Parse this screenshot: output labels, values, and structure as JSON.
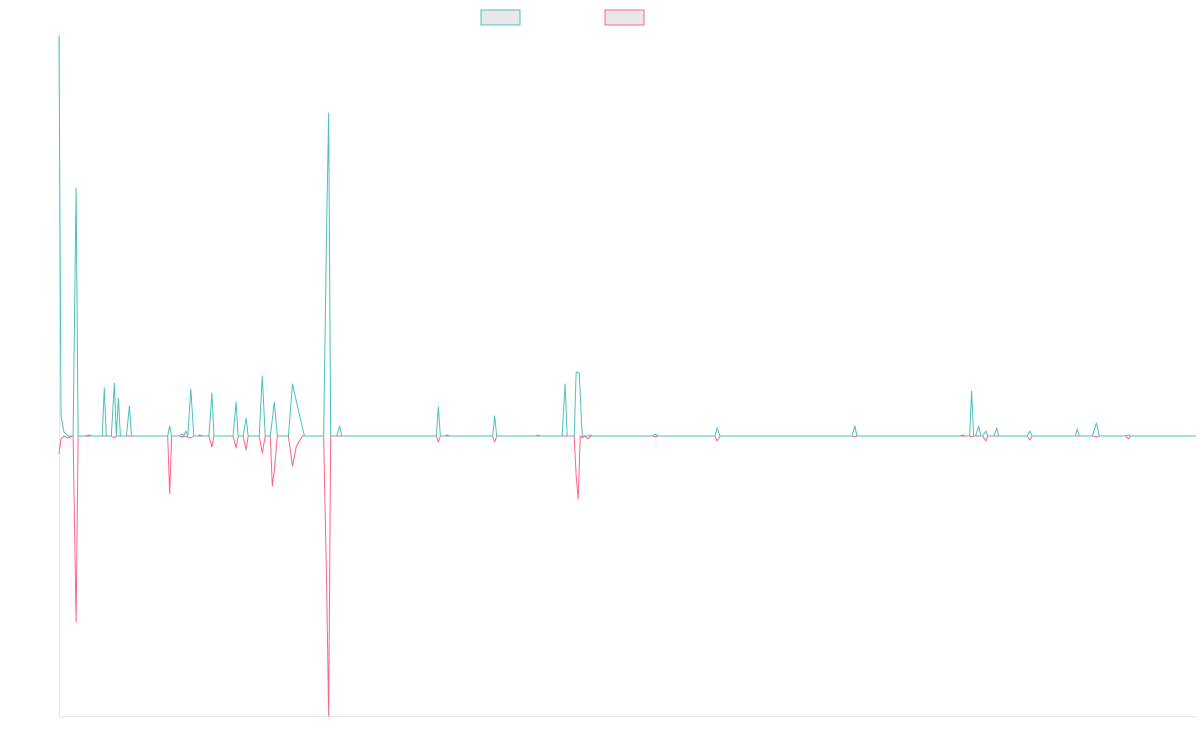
{
  "colors": {
    "series_a": "#4bc0c0",
    "series_b": "#ff6384",
    "axis": "#e6e6e6",
    "legend_fill": "#e8e8e8"
  },
  "chart_data": {
    "type": "line",
    "title": "",
    "xlabel": "",
    "ylabel": "",
    "x_range": [
      0,
      1130
    ],
    "ylim": [
      -280,
      400
    ],
    "grid": false,
    "legend_placement": "top",
    "series": [
      {
        "name": "",
        "points": [
          [
            0,
            400
          ],
          [
            2,
            20
          ],
          [
            5,
            4
          ],
          [
            9,
            0
          ],
          [
            14,
            0
          ],
          [
            17,
            248
          ],
          [
            19,
            0
          ],
          [
            25,
            0
          ],
          [
            30,
            1
          ],
          [
            33,
            0
          ],
          [
            43,
            0
          ],
          [
            45,
            48
          ],
          [
            47,
            0
          ],
          [
            52,
            0
          ],
          [
            55,
            53
          ],
          [
            57,
            0
          ],
          [
            59,
            38
          ],
          [
            61,
            0
          ],
          [
            67,
            0
          ],
          [
            70,
            30
          ],
          [
            72,
            0
          ],
          [
            108,
            0
          ],
          [
            110,
            10
          ],
          [
            112,
            0
          ],
          [
            120,
            0
          ],
          [
            122,
            2
          ],
          [
            124,
            0
          ],
          [
            126,
            5
          ],
          [
            128,
            0
          ],
          [
            131,
            47
          ],
          [
            134,
            0
          ],
          [
            138,
            0
          ],
          [
            140,
            1
          ],
          [
            143,
            0
          ],
          [
            149,
            0
          ],
          [
            152,
            43
          ],
          [
            154,
            0
          ],
          [
            173,
            0
          ],
          [
            176,
            34
          ],
          [
            178,
            0
          ],
          [
            183,
            0
          ],
          [
            186,
            18
          ],
          [
            188,
            0
          ],
          [
            199,
            0
          ],
          [
            202,
            60
          ],
          [
            205,
            0
          ],
          [
            210,
            0
          ],
          [
            214,
            34
          ],
          [
            217,
            0
          ],
          [
            228,
            0
          ],
          [
            232,
            52
          ],
          [
            242,
            8
          ],
          [
            244,
            0
          ],
          [
            263,
            0
          ],
          [
            266,
            210
          ],
          [
            268,
            323
          ],
          [
            270,
            0
          ],
          [
            276,
            0
          ],
          [
            279,
            10
          ],
          [
            281,
            0
          ],
          [
            303,
            0
          ],
          [
            305,
            0
          ],
          [
            375,
            0
          ],
          [
            377,
            29
          ],
          [
            379,
            0
          ],
          [
            383,
            0
          ],
          [
            386,
            1
          ],
          [
            388,
            0
          ],
          [
            431,
            0
          ],
          [
            433,
            20
          ],
          [
            435,
            0
          ],
          [
            474,
            0
          ],
          [
            476,
            1
          ],
          [
            478,
            0
          ],
          [
            500,
            0
          ],
          [
            503,
            52
          ],
          [
            505,
            0
          ],
          [
            512,
            0
          ],
          [
            514,
            64
          ],
          [
            517,
            63
          ],
          [
            520,
            0
          ],
          [
            526,
            0
          ],
          [
            528,
            1
          ],
          [
            530,
            0
          ],
          [
            590,
            0
          ],
          [
            593,
            2
          ],
          [
            595,
            0
          ],
          [
            652,
            0
          ],
          [
            654,
            8
          ],
          [
            657,
            0
          ],
          [
            788,
            0
          ],
          [
            791,
            10
          ],
          [
            793,
            0
          ],
          [
            895,
            0
          ],
          [
            898,
            1
          ],
          [
            901,
            0
          ],
          [
            905,
            0
          ],
          [
            907,
            45
          ],
          [
            909,
            0
          ],
          [
            911,
            0
          ],
          [
            914,
            10
          ],
          [
            916,
            0
          ],
          [
            918,
            0
          ],
          [
            921,
            5
          ],
          [
            923,
            0
          ],
          [
            929,
            0
          ],
          [
            932,
            8
          ],
          [
            934,
            0
          ],
          [
            962,
            0
          ],
          [
            965,
            5
          ],
          [
            967,
            0
          ],
          [
            986,
            0
          ],
          [
            989,
            0
          ],
          [
            1010,
            0
          ],
          [
            1012,
            7
          ],
          [
            1014,
            0
          ],
          [
            1027,
            0
          ],
          [
            1031,
            13
          ],
          [
            1034,
            0
          ],
          [
            1060,
            0
          ],
          [
            1063,
            1
          ],
          [
            1065,
            0
          ],
          [
            1130,
            0
          ]
        ]
      },
      {
        "name": "",
        "points": [
          [
            0,
            -18
          ],
          [
            2,
            -3
          ],
          [
            5,
            0
          ],
          [
            9,
            -2
          ],
          [
            14,
            0
          ],
          [
            17,
            -186
          ],
          [
            19,
            0
          ],
          [
            25,
            0
          ],
          [
            30,
            0
          ],
          [
            33,
            0
          ],
          [
            52,
            0
          ],
          [
            55,
            -2
          ],
          [
            57,
            0
          ],
          [
            108,
            0
          ],
          [
            110,
            -58
          ],
          [
            112,
            0
          ],
          [
            120,
            0
          ],
          [
            122,
            -1
          ],
          [
            124,
            0
          ],
          [
            131,
            -2
          ],
          [
            134,
            0
          ],
          [
            138,
            0
          ],
          [
            140,
            0
          ],
          [
            143,
            0
          ],
          [
            149,
            0
          ],
          [
            152,
            -11
          ],
          [
            154,
            0
          ],
          [
            173,
            0
          ],
          [
            176,
            -12
          ],
          [
            178,
            0
          ],
          [
            183,
            0
          ],
          [
            186,
            -14
          ],
          [
            188,
            0
          ],
          [
            199,
            0
          ],
          [
            202,
            -17
          ],
          [
            205,
            0
          ],
          [
            210,
            0
          ],
          [
            212,
            -50
          ],
          [
            214,
            -35
          ],
          [
            217,
            0
          ],
          [
            228,
            0
          ],
          [
            232,
            -30
          ],
          [
            236,
            -10
          ],
          [
            242,
            0
          ],
          [
            244,
            0
          ],
          [
            263,
            0
          ],
          [
            266,
            -150
          ],
          [
            268,
            -280
          ],
          [
            270,
            0
          ],
          [
            276,
            0
          ],
          [
            279,
            0
          ],
          [
            281,
            0
          ],
          [
            375,
            0
          ],
          [
            377,
            -6
          ],
          [
            379,
            0
          ],
          [
            383,
            0
          ],
          [
            386,
            0
          ],
          [
            388,
            0
          ],
          [
            431,
            0
          ],
          [
            433,
            -6
          ],
          [
            435,
            0
          ],
          [
            474,
            0
          ],
          [
            476,
            0
          ],
          [
            478,
            0
          ],
          [
            512,
            0
          ],
          [
            514,
            -40
          ],
          [
            516,
            -63
          ],
          [
            518,
            0
          ],
          [
            520,
            -2
          ],
          [
            522,
            0
          ],
          [
            526,
            -3
          ],
          [
            528,
            0
          ],
          [
            530,
            0
          ],
          [
            590,
            0
          ],
          [
            593,
            -1
          ],
          [
            595,
            0
          ],
          [
            652,
            0
          ],
          [
            654,
            -5
          ],
          [
            657,
            0
          ],
          [
            788,
            0
          ],
          [
            791,
            -1
          ],
          [
            793,
            0
          ],
          [
            895,
            0
          ],
          [
            898,
            0
          ],
          [
            901,
            0
          ],
          [
            905,
            0
          ],
          [
            907,
            -1
          ],
          [
            909,
            0
          ],
          [
            918,
            0
          ],
          [
            921,
            -5
          ],
          [
            923,
            0
          ],
          [
            962,
            0
          ],
          [
            965,
            -4
          ],
          [
            967,
            0
          ],
          [
            1027,
            0
          ],
          [
            1031,
            -1
          ],
          [
            1034,
            0
          ],
          [
            1060,
            0
          ],
          [
            1063,
            -3
          ],
          [
            1065,
            0
          ],
          [
            1130,
            0
          ]
        ]
      }
    ]
  }
}
